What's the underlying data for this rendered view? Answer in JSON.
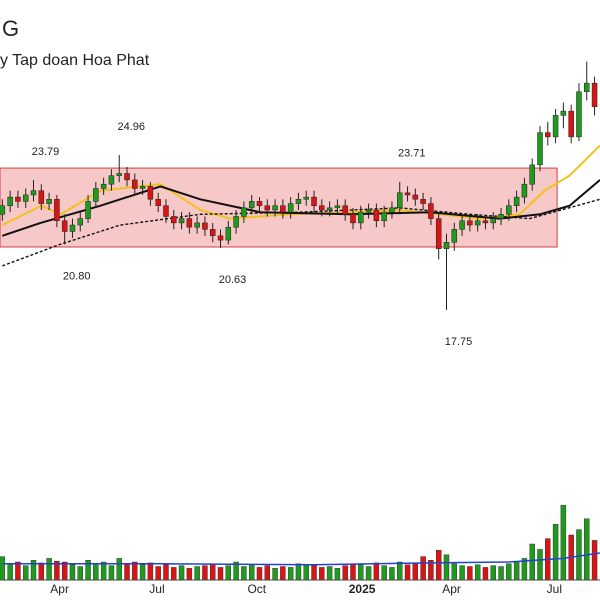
{
  "chart_data": {
    "type": "candlestick",
    "title": "G",
    "subtitle": "y Tap doan Hoa Phat",
    "ylim": [
      10,
      32
    ],
    "yticks": [
      10,
      12,
      14,
      16,
      18,
      20,
      22,
      24,
      26,
      28,
      30,
      32
    ],
    "xlim": [
      -0.3,
      76.7
    ],
    "xticks": [
      {
        "value": 5.9,
        "label": "Apr"
      },
      {
        "value": 18.6,
        "label": "Jul"
      },
      {
        "value": 31.2,
        "label": "Oct"
      },
      {
        "value": 44.2,
        "label": "2025"
      },
      {
        "value": 56.2,
        "label": "Apr"
      },
      {
        "value": 69.6,
        "label": "Jul"
      }
    ],
    "up_color": "#1f9a1f",
    "down_color": "#d81414",
    "open": [
      22.2,
      22.6,
      23.0,
      22.8,
      23.1,
      23.3,
      22.7,
      22.9,
      21.9,
      21.4,
      21.7,
      22.0,
      22.8,
      23.4,
      23.6,
      24.0,
      24.1,
      23.8,
      23.4,
      23.5,
      22.9,
      22.6,
      22.1,
      21.8,
      22.0,
      21.6,
      21.8,
      21.5,
      21.2,
      21.0,
      21.6,
      22.1,
      22.5,
      22.8,
      22.6,
      22.4,
      22.6,
      22.3,
      22.7,
      22.9,
      23.0,
      22.6,
      22.4,
      22.5,
      22.6,
      22.2,
      21.8,
      22.3,
      22.4,
      21.9,
      22.3,
      22.5,
      23.2,
      23.1,
      22.9,
      22.7,
      22.0,
      20.6,
      20.9,
      21.5,
      21.9,
      21.7,
      21.9,
      21.8,
      22.0,
      22.2,
      22.6,
      23.0,
      23.6,
      24.5,
      26.0,
      25.8,
      26.8,
      27.0,
      25.8,
      27.9,
      28.3
    ],
    "high": [
      22.9,
      23.3,
      23.3,
      23.4,
      23.79,
      23.6,
      23.2,
      23.1,
      22.2,
      22.0,
      22.3,
      23.1,
      23.7,
      23.9,
      24.3,
      24.96,
      24.4,
      24.1,
      23.8,
      23.7,
      23.2,
      22.9,
      22.4,
      22.3,
      22.3,
      22.1,
      22.1,
      21.8,
      21.5,
      21.9,
      22.4,
      22.8,
      23.1,
      23.0,
      22.9,
      22.9,
      22.9,
      23.0,
      23.2,
      23.3,
      23.3,
      22.9,
      22.8,
      22.9,
      22.9,
      22.5,
      22.6,
      22.7,
      22.7,
      22.6,
      22.8,
      23.71,
      23.5,
      23.4,
      23.2,
      23.0,
      22.3,
      21.3,
      21.8,
      22.2,
      22.2,
      22.2,
      22.1,
      22.3,
      22.5,
      22.9,
      23.3,
      23.9,
      24.8,
      26.3,
      26.5,
      27.1,
      27.4,
      27.3,
      28.3,
      29.3,
      28.6
    ],
    "low": [
      21.9,
      22.3,
      22.5,
      22.5,
      22.8,
      22.4,
      22.4,
      21.6,
      20.8,
      21.1,
      21.4,
      21.8,
      22.5,
      23.1,
      23.3,
      23.7,
      23.5,
      23.1,
      23.1,
      22.6,
      22.3,
      21.8,
      21.5,
      21.5,
      21.3,
      21.3,
      21.2,
      20.9,
      20.63,
      20.8,
      21.3,
      21.8,
      22.2,
      22.3,
      22.1,
      22.1,
      22.0,
      22.0,
      22.4,
      22.6,
      22.3,
      22.1,
      22.1,
      22.2,
      21.9,
      21.5,
      21.5,
      22.0,
      21.6,
      21.6,
      22.0,
      22.2,
      22.8,
      22.6,
      22.4,
      21.7,
      20.1,
      17.75,
      20.5,
      21.2,
      21.4,
      21.4,
      21.5,
      21.5,
      21.7,
      21.9,
      22.3,
      22.7,
      23.3,
      24.2,
      25.4,
      25.5,
      26.2,
      25.5,
      25.6,
      27.5,
      26.8
    ],
    "close": [
      22.6,
      23.0,
      22.8,
      23.1,
      23.3,
      22.7,
      22.9,
      21.9,
      21.4,
      21.7,
      22.0,
      22.8,
      23.4,
      23.6,
      24.0,
      24.1,
      23.8,
      23.4,
      23.5,
      22.9,
      22.6,
      22.1,
      21.8,
      22.0,
      21.6,
      21.8,
      21.5,
      21.2,
      21.0,
      21.6,
      22.1,
      22.5,
      22.8,
      22.6,
      22.4,
      22.6,
      22.3,
      22.7,
      22.9,
      23.0,
      22.6,
      22.4,
      22.5,
      22.6,
      22.2,
      21.8,
      22.3,
      22.4,
      21.9,
      22.3,
      22.5,
      23.2,
      23.1,
      22.9,
      22.7,
      22.0,
      20.6,
      20.9,
      21.5,
      21.9,
      21.7,
      21.9,
      21.8,
      22.0,
      22.2,
      22.6,
      23.0,
      23.6,
      24.5,
      26.0,
      25.8,
      26.8,
      27.0,
      25.8,
      27.9,
      28.3,
      27.2
    ],
    "volume": [
      26,
      18,
      20,
      16,
      22,
      19,
      24,
      21,
      20,
      17,
      15,
      22,
      18,
      20,
      16,
      24,
      18,
      20,
      17,
      19,
      15,
      17,
      14,
      16,
      13,
      15,
      16,
      18,
      14,
      16,
      20,
      15,
      17,
      14,
      16,
      13,
      15,
      14,
      18,
      17,
      16,
      14,
      15,
      13,
      16,
      18,
      17,
      15,
      19,
      16,
      14,
      20,
      17,
      18,
      26,
      22,
      33,
      28,
      18,
      16,
      15,
      17,
      14,
      16,
      15,
      18,
      20,
      24,
      40,
      34,
      46,
      62,
      83,
      50,
      56,
      68,
      44
    ],
    "vlim": [
      0,
      100
    ],
    "range_box": {
      "from": -0.3,
      "to": 71.2,
      "top": 24.35,
      "bottom": 20.68,
      "color": "#f4b6b6"
    },
    "lines": [
      {
        "color": "#f2c21b",
        "dash": false,
        "x": [
          0,
          5,
          7.5,
          12.6,
          20.3,
          25.4,
          29.2,
          37,
          44.6,
          51,
          56.2,
          61.3,
          66.4,
          69.6,
          72.8,
          76.7
        ],
        "values": [
          21.7,
          22.6,
          22.2,
          23.3,
          23.6,
          22.4,
          22.0,
          22.2,
          22.3,
          22.4,
          22.2,
          22.0,
          22.2,
          23.3,
          24.0,
          25.4
        ]
      },
      {
        "color": "#111111",
        "dash": false,
        "x": [
          0,
          4.9,
          12.6,
          20.3,
          25.4,
          33.1,
          44.6,
          54.9,
          63.8,
          69,
          72.8,
          76.7
        ],
        "values": [
          21.2,
          21.8,
          22.6,
          23.5,
          22.9,
          22.3,
          22.2,
          22.3,
          22.0,
          22.2,
          22.6,
          23.8
        ]
      },
      {
        "color": "#111111",
        "dash": true,
        "x": [
          0,
          7.4,
          15.1,
          25.4,
          38.2,
          51,
          60,
          67.7,
          76.7
        ],
        "values": [
          19.8,
          20.8,
          21.7,
          22.2,
          22.3,
          22.5,
          22.2,
          22.0,
          22.9
        ]
      }
    ],
    "volume_line": {
      "color": "#2244cc",
      "x": [
        0,
        20,
        40,
        55,
        65,
        72,
        76.7
      ],
      "values": [
        18,
        18,
        17,
        19,
        20,
        24,
        30
      ]
    },
    "annotations": [
      {
        "at": 4,
        "side": "high",
        "label": "23.79"
      },
      {
        "at": 15,
        "side": "high",
        "label": "24.96"
      },
      {
        "at": 8,
        "side": "low",
        "label": "20.80"
      },
      {
        "at": 28,
        "side": "low",
        "label": "20.63"
      },
      {
        "at": 51,
        "side": "high",
        "label": "23.71"
      },
      {
        "at": 57,
        "side": "low",
        "label": "17.75"
      }
    ]
  }
}
